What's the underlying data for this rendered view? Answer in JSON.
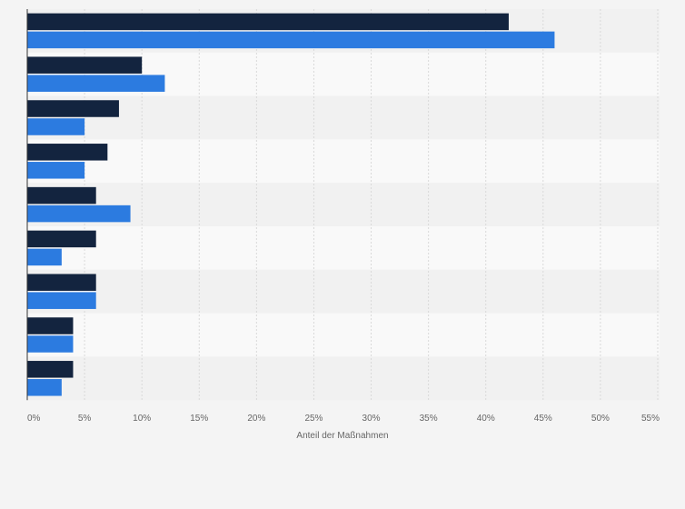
{
  "colors": {
    "series_primary": "#13243f",
    "series_secondary": "#2c7be0",
    "band_light": "#f9f9f9",
    "band_dark": "#f1f1f1",
    "gridline": "#d9d9d9",
    "axis_line": "#333333"
  },
  "chart_data": {
    "type": "bar",
    "orientation": "horizontal",
    "title": "",
    "xlabel": "Anteil der Maßnahmen",
    "ylabel": "",
    "xlim": [
      0,
      55
    ],
    "x_ticks": [
      0,
      5,
      10,
      15,
      20,
      25,
      30,
      35,
      40,
      45,
      50,
      55
    ],
    "x_tick_labels": [
      "0%",
      "5%",
      "10%",
      "15%",
      "20%",
      "25%",
      "30%",
      "35%",
      "40%",
      "45%",
      "50%",
      "55%"
    ],
    "categories": [
      "",
      "",
      "",
      "",
      "",
      "",
      "",
      "",
      ""
    ],
    "series": [
      {
        "name": "",
        "values": [
          42,
          10,
          8,
          7,
          6,
          6,
          6,
          4,
          4
        ]
      },
      {
        "name": "",
        "values": [
          46,
          12,
          5,
          5,
          9,
          3,
          6,
          4,
          3
        ]
      }
    ],
    "grid": true,
    "legend": "none"
  }
}
